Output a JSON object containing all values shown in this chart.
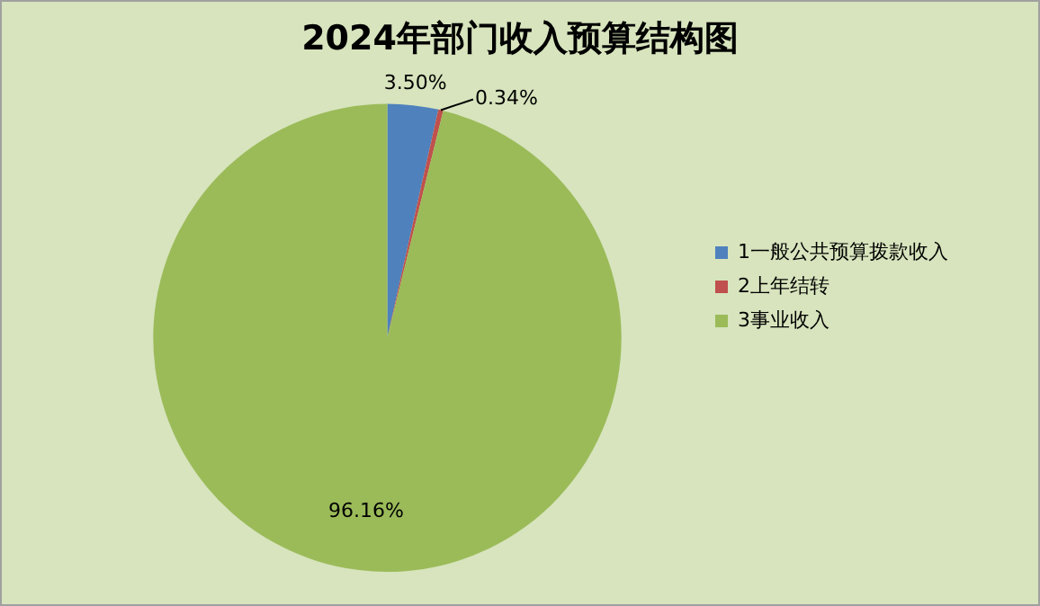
{
  "chart_data": {
    "type": "pie",
    "title": "2024年部门收入预算结构图",
    "categories": [
      "1一般公共预算拨款收入",
      "2上年结转",
      "3事业收入"
    ],
    "values": [
      3.5,
      0.34,
      96.16
    ],
    "colors": [
      "#4f81bd",
      "#c0504d",
      "#9bbb59"
    ],
    "value_labels": [
      "3.50%",
      "0.34%",
      "96.16%"
    ],
    "legend": "right"
  }
}
